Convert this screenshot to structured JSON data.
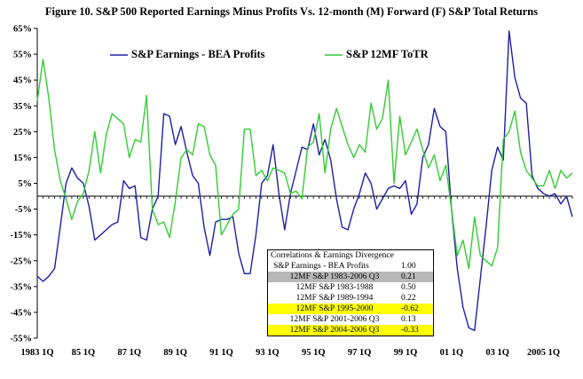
{
  "title": "Figure 10.  S&P 500 Reported Earnings Minus Profits Vs. 12-month (M) Forward (F) S&P Total Returns",
  "colors": {
    "earnings_series": "#1f1fa8",
    "returns_series": "#33cc33",
    "highlight_gray": "#b8b8b8",
    "highlight_yellow": "#ffff00"
  },
  "chart_data": {
    "type": "line",
    "title": "Figure 10.  S&P 500 Reported Earnings Minus Profits Vs. 12-month (M) Forward (F) S&P Total Returns",
    "xlabel": "",
    "ylabel": "",
    "ylim": [
      -55,
      65
    ],
    "y_ticks": [
      65,
      55,
      45,
      35,
      25,
      15,
      5,
      -5,
      -15,
      -25,
      -35,
      -45,
      -55
    ],
    "y_tick_labels": [
      "65%",
      "55%",
      "45%",
      "35%",
      "25%",
      "15%",
      "5%",
      "-5%",
      "-15%",
      "-25%",
      "-35%",
      "-45%",
      "-55%"
    ],
    "x_tick_labels": [
      "1983 1Q",
      "85 1Q",
      "87 1Q",
      "89 1Q",
      "91 1Q",
      "93 1Q",
      "95 1Q",
      "97 1Q",
      "99 1Q",
      "01 1Q",
      "03 1Q",
      "2005 1Q"
    ],
    "x_tick_quarter_index": [
      0,
      8,
      16,
      24,
      32,
      40,
      48,
      56,
      64,
      72,
      80,
      88
    ],
    "grid": false,
    "legend": "top",
    "series": [
      {
        "name": "S&P Earnings - BEA Profits",
        "values": [
          -31,
          -33,
          -31,
          -28,
          -12,
          5,
          11,
          7,
          5,
          -4,
          -17,
          -15,
          -13,
          -11,
          -10,
          6,
          3,
          4,
          -16,
          -17,
          -5,
          0,
          32,
          31,
          20,
          27,
          17,
          8,
          5,
          -12,
          -23,
          -10,
          -9,
          -9,
          -8,
          -22,
          -30,
          -30,
          -15,
          5,
          8,
          20,
          1,
          -13,
          1,
          10,
          19,
          18,
          28,
          16,
          22,
          14,
          -1,
          -12,
          -13,
          -5,
          1,
          9,
          5,
          -5,
          -1,
          3,
          4,
          3,
          6,
          -7,
          -3,
          15,
          20,
          34,
          27,
          25,
          -5,
          -28,
          -43,
          -51,
          -52,
          -32,
          -12,
          10,
          19,
          14,
          64,
          46,
          38,
          36,
          8,
          3,
          1,
          0,
          1,
          -3,
          0,
          -8
        ]
      },
      {
        "name": "S&P 12MF ToTR",
        "values": [
          37,
          53,
          38,
          18,
          6,
          -1,
          -9,
          -2,
          1,
          10,
          25,
          9,
          24,
          32,
          30,
          28,
          15,
          22,
          21,
          39,
          -5,
          -11,
          -10,
          -16,
          -2,
          15,
          18,
          16,
          28,
          27,
          16,
          12,
          -15,
          -11,
          -7,
          -5,
          26,
          26,
          8,
          10,
          6,
          11,
          10,
          9,
          1,
          2,
          -1,
          19,
          21,
          32,
          9,
          26,
          34,
          27,
          20,
          15,
          20,
          17,
          36,
          26,
          30,
          45,
          5,
          31,
          16,
          21,
          26,
          18,
          11,
          16,
          6,
          12,
          -5,
          -23,
          -17,
          -28,
          -8,
          -23,
          -25,
          -27,
          -20,
          22,
          25,
          33,
          17,
          10,
          7,
          4,
          4,
          10,
          3,
          10,
          7,
          9
        ]
      }
    ]
  },
  "legend": {
    "earnings_label": "S&P Earnings - BEA Profits",
    "returns_label": "S&P 12MF ToTR"
  },
  "correlation_table": {
    "header": "Correlations & Earnings Divergence",
    "subheader_label": "S&P Earnings - BEA Profits",
    "subheader_value": "1.00",
    "rows": [
      {
        "label": "12MF S&P 1983-2006 Q3",
        "value": "0.21",
        "highlight": "gray"
      },
      {
        "label": "12MF S&P 1983-1988",
        "value": "0.50",
        "highlight": "none"
      },
      {
        "label": "12MF S&P 1989-1994",
        "value": "0.22",
        "highlight": "none"
      },
      {
        "label": "12MF S&P 1995-2000",
        "value": "-0.62",
        "highlight": "yellow"
      },
      {
        "label": "12MF S&P 2001-2006 Q3",
        "value": "0.13",
        "highlight": "none"
      },
      {
        "label": "12MF S&P 2004-2006 Q3",
        "value": "-0.33",
        "highlight": "yellow"
      }
    ]
  }
}
